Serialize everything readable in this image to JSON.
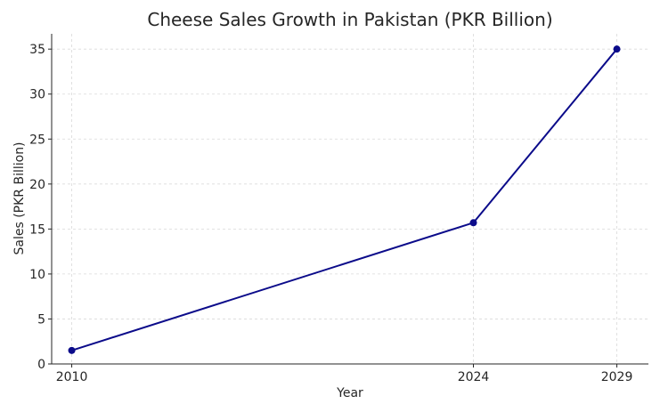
{
  "chart_data": {
    "type": "line",
    "title": "Cheese Sales Growth in Pakistan (PKR Billion)",
    "xlabel": "Year",
    "ylabel": "Sales (PKR Billion)",
    "x": [
      2010,
      2024,
      2029
    ],
    "x_tick_labels": [
      "2010",
      "2024",
      "2029"
    ],
    "xlim": [
      2009.3,
      2030.1
    ],
    "ylim": [
      0,
      36.7
    ],
    "y_ticks": [
      0,
      5,
      10,
      15,
      20,
      25,
      30,
      35
    ],
    "y_tick_labels": [
      "0",
      "5",
      "10",
      "15",
      "20",
      "25",
      "30",
      "35"
    ],
    "grid": true,
    "series": [
      {
        "name": "Sales",
        "values": [
          1.5,
          15.7,
          35.0
        ],
        "color": "#0b0b8a"
      }
    ]
  }
}
